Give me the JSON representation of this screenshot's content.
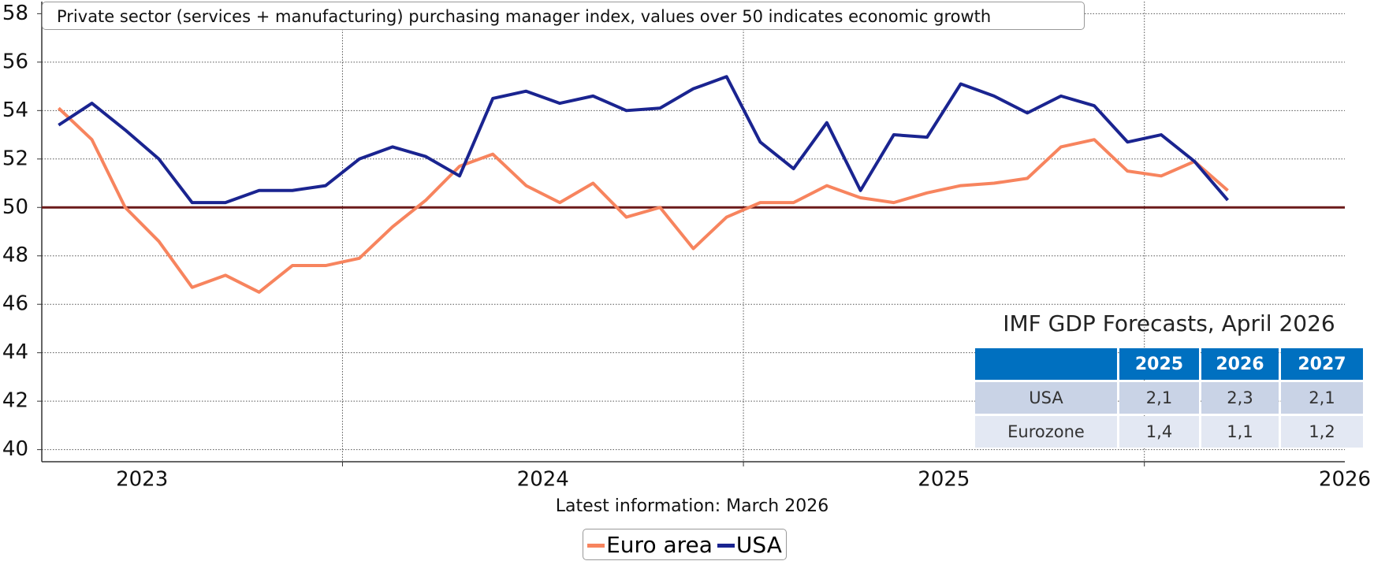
{
  "chart_data": {
    "type": "line",
    "title": "Private sector (services + manufacturing) purchasing manager index, values over 50 indicates economic growth",
    "subtitle": "Latest information: March 2026",
    "x": [
      2022.792,
      2022.875,
      2022.958,
      2023.042,
      2023.125,
      2023.208,
      2023.292,
      2023.375,
      2023.458,
      2023.542,
      2023.625,
      2023.708,
      2023.792,
      2023.875,
      2023.958,
      2024.042,
      2024.125,
      2024.208,
      2024.292,
      2024.375,
      2024.458,
      2024.542,
      2024.625,
      2024.708,
      2024.792,
      2024.875,
      2024.958,
      2025.042,
      2025.125,
      2025.208,
      2025.292,
      2025.375,
      2025.458,
      2025.542,
      2025.625,
      2025.708
    ],
    "series": [
      {
        "name": "Euro area",
        "color": "#f7845e",
        "values": [
          54.1,
          52.8,
          50.0,
          48.6,
          46.7,
          47.2,
          46.5,
          47.6,
          47.6,
          47.9,
          49.2,
          50.3,
          51.7,
          52.2,
          50.9,
          50.2,
          51.0,
          49.6,
          50.0,
          48.3,
          49.6,
          50.2,
          50.2,
          50.9,
          50.4,
          50.2,
          50.6,
          50.9,
          51.0,
          51.2,
          52.5,
          52.8,
          51.5,
          51.3,
          51.9,
          50.7
        ]
      },
      {
        "name": "USA",
        "color": "#1a2490",
        "values": [
          53.4,
          54.3,
          53.2,
          52.0,
          50.2,
          50.2,
          50.7,
          50.7,
          50.9,
          52.0,
          52.5,
          52.1,
          51.3,
          54.5,
          54.8,
          54.3,
          54.6,
          54.0,
          54.1,
          54.9,
          55.4,
          52.7,
          51.6,
          53.5,
          50.7,
          53.0,
          52.9,
          55.1,
          54.6,
          53.9,
          54.6,
          54.2,
          52.7,
          53.0,
          51.9,
          50.3
        ]
      }
    ],
    "xlim": [
      2022.75,
      2026.0
    ],
    "xticks": [
      2023,
      2024,
      2025,
      2026
    ],
    "xgrid": [
      2023.5,
      2024.5,
      2025.5
    ],
    "ylim": [
      39.5,
      58.5
    ],
    "yticks": [
      40,
      42,
      44,
      46,
      48,
      50,
      52,
      54,
      56,
      58
    ],
    "grid": true,
    "reference_line": {
      "value": 50,
      "color": "#6b1a1a"
    },
    "legend": "bottom",
    "table": {
      "title": "IMF GDP Forecasts, April 2026",
      "header": [
        "2025",
        "2026",
        "2027"
      ],
      "rows": [
        [
          "USA",
          "2,1",
          "2,3",
          "2,1"
        ],
        [
          "Eurozone",
          "1,4",
          "1,1",
          "1,2"
        ]
      ]
    }
  }
}
